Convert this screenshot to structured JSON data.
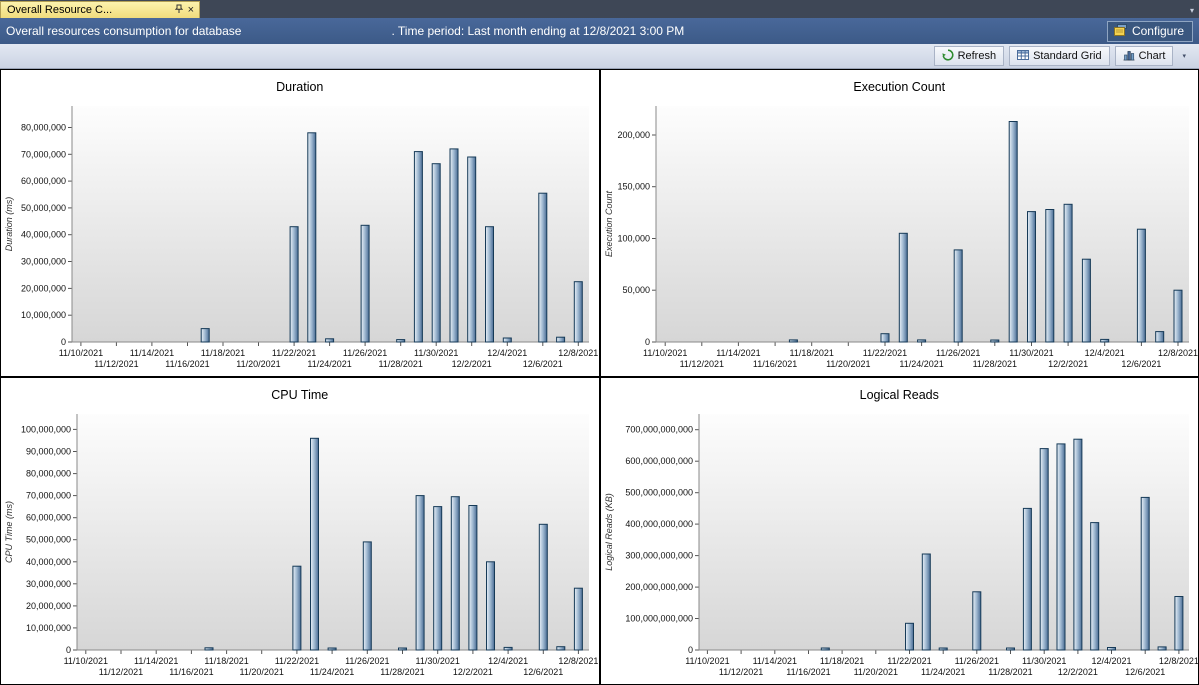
{
  "colors": {
    "header_blue": "#40618E",
    "tab_yellow": "#F7E89A",
    "bar_fill_steel_blue": "#4A6C94",
    "bar_outline_navy": "#163A57",
    "toolbar_gray_blue": "#CBD3E3"
  },
  "window": {
    "tab": {
      "title": "Overall Resource C..."
    },
    "header": {
      "title_prefix": "Overall resources consumption for database",
      "title_suffix": ". Time period: Last month ending at 12/8/2021 3:00 PM",
      "configure_label": "Configure"
    },
    "toolbar": {
      "refresh": "Refresh",
      "standard_grid": "Standard Grid",
      "chart": "Chart"
    }
  },
  "icons": {
    "pin_icon": "pushpin",
    "close_icon": "×",
    "tab_overflow_icon": "▾",
    "configure_icon": "configure-tools",
    "refresh_icon": "green-circular-arrow",
    "standard_grid_icon": "table-grid",
    "chart_icon": "bar-chart",
    "toolbar_overflow_icon": "▾"
  },
  "chart_data": [
    {
      "type": "bar",
      "title": "Duration",
      "ylabel": "Duration (ms)",
      "ylim": [
        0,
        88000000
      ],
      "yticks": [
        0,
        10000000,
        20000000,
        30000000,
        40000000,
        50000000,
        60000000,
        70000000,
        80000000
      ],
      "x_range": [
        "11/10/2021",
        "12/8/2021"
      ],
      "x_ticks_row1": [
        "11/10/2021",
        "11/14/2021",
        "11/18/2021",
        "11/22/2021",
        "11/26/2021",
        "11/30/2021",
        "12/4/2021",
        "12/8/2021"
      ],
      "x_ticks_row2": [
        "11/12/2021",
        "11/16/2021",
        "11/20/2021",
        "11/24/2021",
        "11/28/2021",
        "12/2/2021",
        "12/6/2021"
      ],
      "bars": [
        {
          "date": "11/17/2021",
          "value": 5000000
        },
        {
          "date": "11/22/2021",
          "value": 43000000
        },
        {
          "date": "11/23/2021",
          "value": 78000000
        },
        {
          "date": "11/24/2021",
          "value": 1200000
        },
        {
          "date": "11/26/2021",
          "value": 43500000
        },
        {
          "date": "11/28/2021",
          "value": 900000
        },
        {
          "date": "11/29/2021",
          "value": 71000000
        },
        {
          "date": "11/30/2021",
          "value": 66500000
        },
        {
          "date": "12/1/2021",
          "value": 72000000
        },
        {
          "date": "12/2/2021",
          "value": 69000000
        },
        {
          "date": "12/3/2021",
          "value": 43000000
        },
        {
          "date": "12/4/2021",
          "value": 1500000
        },
        {
          "date": "12/6/2021",
          "value": 55500000
        },
        {
          "date": "12/7/2021",
          "value": 1800000
        },
        {
          "date": "12/8/2021",
          "value": 22500000
        }
      ]
    },
    {
      "type": "bar",
      "title": "Execution Count",
      "ylabel": "Execution Count",
      "ylim": [
        0,
        228000
      ],
      "yticks": [
        0,
        50000,
        100000,
        150000,
        200000
      ],
      "x_range": [
        "11/10/2021",
        "12/8/2021"
      ],
      "x_ticks_row1": [
        "11/10/2021",
        "11/14/2021",
        "11/18/2021",
        "11/22/2021",
        "11/26/2021",
        "11/30/2021",
        "12/4/2021",
        "12/8/2021"
      ],
      "x_ticks_row2": [
        "11/12/2021",
        "11/16/2021",
        "11/20/2021",
        "11/24/2021",
        "11/28/2021",
        "12/2/2021",
        "12/6/2021"
      ],
      "bars": [
        {
          "date": "11/17/2021",
          "value": 2000
        },
        {
          "date": "11/22/2021",
          "value": 8000
        },
        {
          "date": "11/23/2021",
          "value": 105000
        },
        {
          "date": "11/24/2021",
          "value": 2000
        },
        {
          "date": "11/26/2021",
          "value": 89000
        },
        {
          "date": "11/28/2021",
          "value": 1500
        },
        {
          "date": "11/29/2021",
          "value": 213000
        },
        {
          "date": "11/30/2021",
          "value": 126000
        },
        {
          "date": "12/1/2021",
          "value": 128000
        },
        {
          "date": "12/2/2021",
          "value": 133000
        },
        {
          "date": "12/3/2021",
          "value": 80000
        },
        {
          "date": "12/4/2021",
          "value": 2500
        },
        {
          "date": "12/6/2021",
          "value": 109000
        },
        {
          "date": "12/7/2021",
          "value": 10000
        },
        {
          "date": "12/8/2021",
          "value": 50000
        }
      ]
    },
    {
      "type": "bar",
      "title": "CPU Time",
      "ylabel": "CPU Time (ms)",
      "ylim": [
        0,
        107000000
      ],
      "yticks": [
        0,
        10000000,
        20000000,
        30000000,
        40000000,
        50000000,
        60000000,
        70000000,
        80000000,
        90000000,
        100000000
      ],
      "x_range": [
        "11/10/2021",
        "12/8/2021"
      ],
      "x_ticks_row1": [
        "11/10/2021",
        "11/14/2021",
        "11/18/2021",
        "11/22/2021",
        "11/26/2021",
        "11/30/2021",
        "12/4/2021",
        "12/8/2021"
      ],
      "x_ticks_row2": [
        "11/12/2021",
        "11/16/2021",
        "11/20/2021",
        "11/24/2021",
        "11/28/2021",
        "12/2/2021",
        "12/6/2021"
      ],
      "bars": [
        {
          "date": "11/17/2021",
          "value": 1000000
        },
        {
          "date": "11/22/2021",
          "value": 38000000
        },
        {
          "date": "11/23/2021",
          "value": 96000000
        },
        {
          "date": "11/24/2021",
          "value": 900000
        },
        {
          "date": "11/26/2021",
          "value": 49000000
        },
        {
          "date": "11/28/2021",
          "value": 700000
        },
        {
          "date": "11/29/2021",
          "value": 70000000
        },
        {
          "date": "11/30/2021",
          "value": 65000000
        },
        {
          "date": "12/1/2021",
          "value": 69500000
        },
        {
          "date": "12/2/2021",
          "value": 65500000
        },
        {
          "date": "12/3/2021",
          "value": 40000000
        },
        {
          "date": "12/4/2021",
          "value": 1200000
        },
        {
          "date": "12/6/2021",
          "value": 57000000
        },
        {
          "date": "12/7/2021",
          "value": 1500000
        },
        {
          "date": "12/8/2021",
          "value": 28000000
        }
      ]
    },
    {
      "type": "bar",
      "title": "Logical Reads",
      "ylabel": "Logical Reads (KB)",
      "ylim": [
        0,
        750000000000
      ],
      "yticks": [
        0,
        100000000000,
        200000000000,
        300000000000,
        400000000000,
        500000000000,
        600000000000,
        700000000000
      ],
      "x_range": [
        "11/10/2021",
        "12/8/2021"
      ],
      "x_ticks_row1": [
        "11/10/2021",
        "11/14/2021",
        "11/18/2021",
        "11/22/2021",
        "11/26/2021",
        "11/30/2021",
        "12/4/2021",
        "12/8/2021"
      ],
      "x_ticks_row2": [
        "11/12/2021",
        "11/16/2021",
        "11/20/2021",
        "11/24/2021",
        "11/28/2021",
        "12/2/2021",
        "12/6/2021"
      ],
      "bars": [
        {
          "date": "11/17/2021",
          "value": 2000000000
        },
        {
          "date": "11/22/2021",
          "value": 85000000000
        },
        {
          "date": "11/23/2021",
          "value": 305000000000
        },
        {
          "date": "11/24/2021",
          "value": 4000000000
        },
        {
          "date": "11/26/2021",
          "value": 185000000000
        },
        {
          "date": "11/28/2021",
          "value": 3000000000
        },
        {
          "date": "11/29/2021",
          "value": 450000000000
        },
        {
          "date": "11/30/2021",
          "value": 640000000000
        },
        {
          "date": "12/1/2021",
          "value": 655000000000
        },
        {
          "date": "12/2/2021",
          "value": 670000000000
        },
        {
          "date": "12/3/2021",
          "value": 405000000000
        },
        {
          "date": "12/4/2021",
          "value": 8000000000
        },
        {
          "date": "12/6/2021",
          "value": 485000000000
        },
        {
          "date": "12/7/2021",
          "value": 10000000000
        },
        {
          "date": "12/8/2021",
          "value": 170000000000
        }
      ]
    }
  ]
}
